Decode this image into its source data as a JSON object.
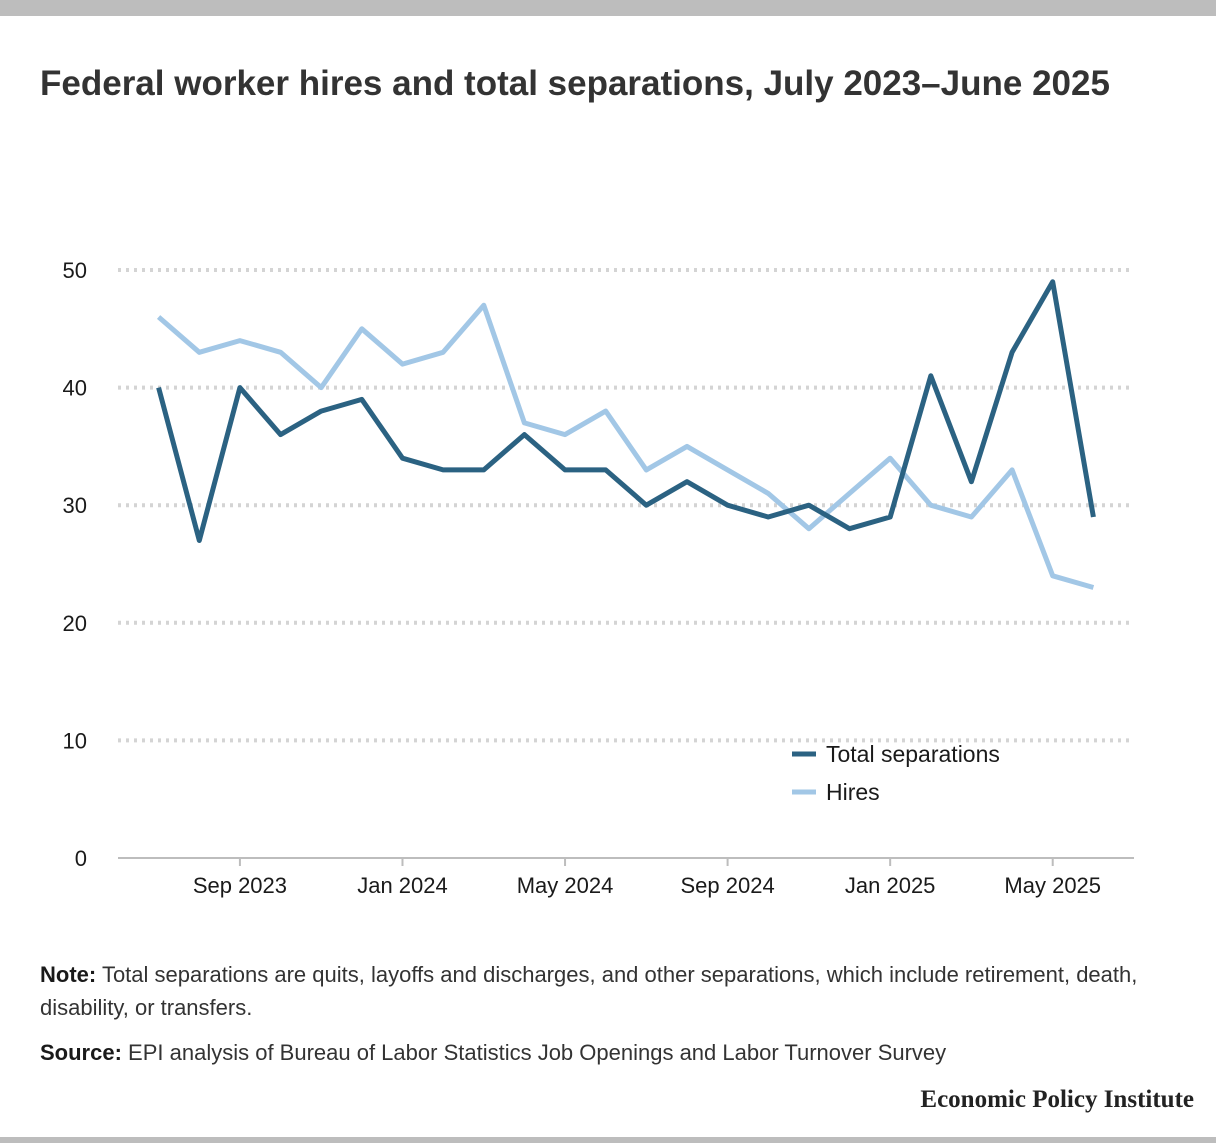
{
  "title": "Federal worker hires and total separations, July 2023–June 2025",
  "note": {
    "label": "Note:",
    "text": "Total separations are quits, layoffs and discharges, and other separations, which include retirement, death, disability, or transfers."
  },
  "source": {
    "label": "Source:",
    "text": "EPI analysis of Bureau of Labor Statistics Job Openings and Labor Turnover Survey"
  },
  "brand": "Economic Policy Institute",
  "chart_data": {
    "type": "line",
    "x": [
      "2023-07",
      "2023-08",
      "2023-09",
      "2023-10",
      "2023-11",
      "2023-12",
      "2024-01",
      "2024-02",
      "2024-03",
      "2024-04",
      "2024-05",
      "2024-06",
      "2024-07",
      "2024-08",
      "2024-09",
      "2024-10",
      "2024-11",
      "2024-12",
      "2025-01",
      "2025-02",
      "2025-03",
      "2025-04",
      "2025-05",
      "2025-06"
    ],
    "series": [
      {
        "name": "Total separations",
        "color": "#2b6282",
        "values": [
          40,
          27,
          40,
          36,
          38,
          39,
          34,
          33,
          33,
          36,
          33,
          33,
          30,
          32,
          30,
          29,
          30,
          28,
          29,
          41,
          32,
          43,
          49,
          29
        ]
      },
      {
        "name": "Hires",
        "color": "#a2c7e6",
        "values": [
          46,
          43,
          44,
          43,
          40,
          45,
          42,
          43,
          47,
          37,
          36,
          38,
          33,
          35,
          33,
          31,
          28,
          31,
          34,
          30,
          29,
          33,
          24,
          23
        ]
      }
    ],
    "x_ticks": [
      {
        "x": "2023-09",
        "label": "Sep 2023"
      },
      {
        "x": "2024-01",
        "label": "Jan 2024"
      },
      {
        "x": "2024-05",
        "label": "May 2024"
      },
      {
        "x": "2024-09",
        "label": "Sep 2024"
      },
      {
        "x": "2025-01",
        "label": "Jan 2025"
      },
      {
        "x": "2025-05",
        "label": "May 2025"
      }
    ],
    "y_ticks": [
      0,
      10,
      20,
      30,
      40,
      50
    ],
    "ylim": [
      0,
      50
    ],
    "xlim": [
      "2023-06",
      "2025-07"
    ],
    "grid": true,
    "legend_position": "bottom-right",
    "title": "Federal worker hires and total separations, July 2023–June 2025",
    "xlabel": "",
    "ylabel": ""
  }
}
